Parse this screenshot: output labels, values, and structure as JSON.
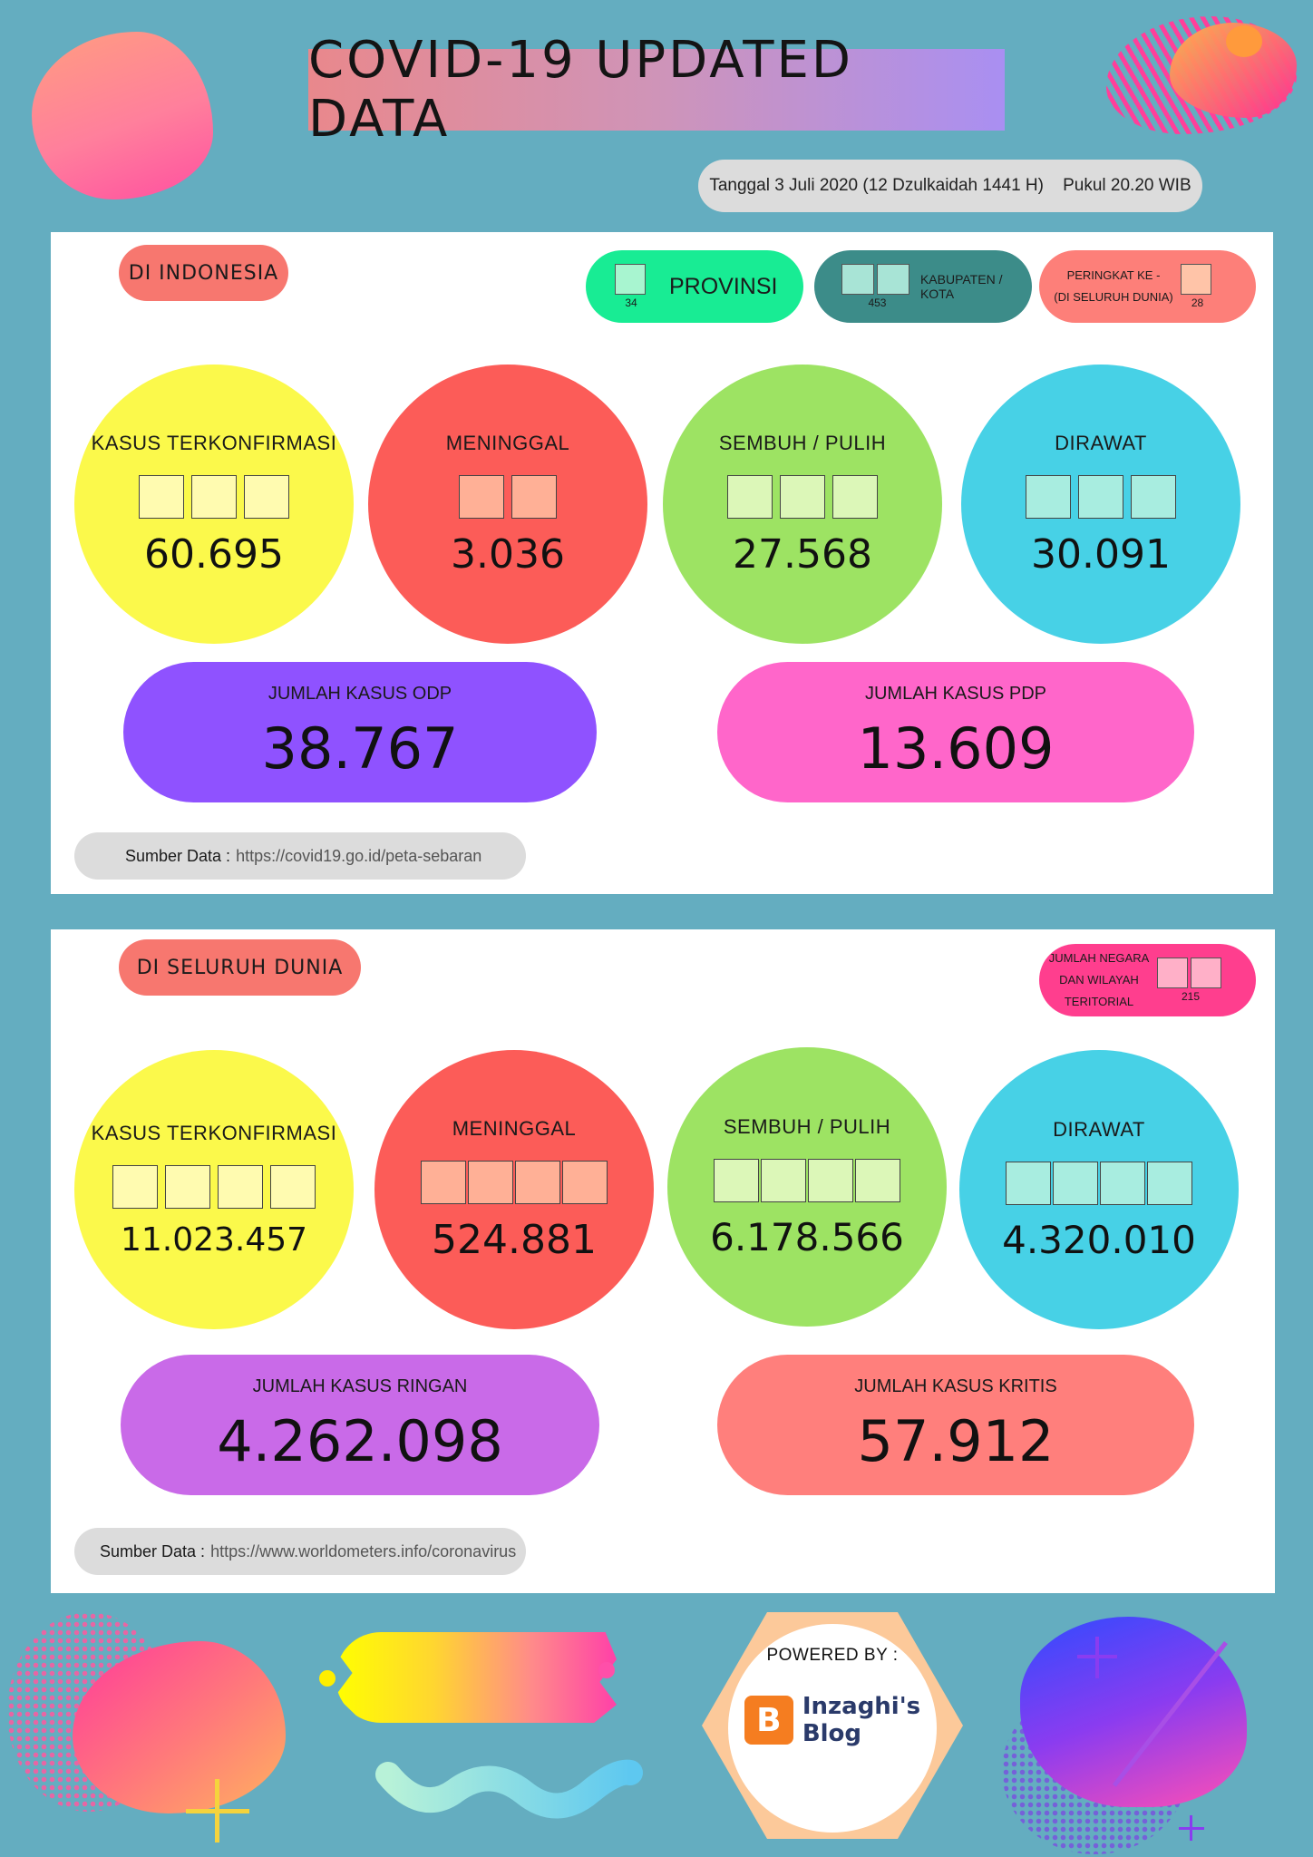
{
  "header": {
    "title": "COVID-19 UPDATED DATA",
    "date_text": "Tanggal 3 Juli 2020 (12 Dzulkaidah 1441 H)    Pukul 20.20 WIB"
  },
  "indonesia": {
    "section_label": "DI INDONESIA",
    "provinsi": {
      "label": "PROVINSI",
      "count": "34"
    },
    "kabupaten": {
      "label": "KABUPATEN / KOTA",
      "count": "453"
    },
    "peringkat": {
      "label_line1": "PERINGKAT KE -",
      "label_line2": "(DI SELURUH DUNIA)",
      "count": "28"
    },
    "stats": [
      {
        "label": "KASUS TERKONFIRMASI",
        "value": "60.695",
        "color": "#fbf94b"
      },
      {
        "label": "MENINGGAL",
        "value": "3.036",
        "color": "#fc5c58"
      },
      {
        "label": "SEMBUH / PULIH",
        "value": "27.568",
        "color": "#9de363"
      },
      {
        "label": "DIRAWAT",
        "value": "30.091",
        "color": "#47d1e6"
      }
    ],
    "odp": {
      "label": "JUMLAH KASUS ODP",
      "value": "38.767",
      "color": "#8f52ff"
    },
    "pdp": {
      "label": "JUMLAH KASUS PDP",
      "value": "13.609",
      "color": "#ff66ca"
    },
    "source": {
      "label": "Sumber Data :",
      "url": "https://covid19.go.id/peta-sebaran"
    }
  },
  "world": {
    "section_label": "DI SELURUH DUNIA",
    "negara": {
      "line1": "JUMLAH NEGARA",
      "line2": "DAN WILAYAH",
      "line3": "TERITORIAL",
      "count": "215"
    },
    "stats": [
      {
        "label": "KASUS TERKONFIRMASI",
        "value": "11.023.457",
        "color": "#fbf94b"
      },
      {
        "label": "MENINGGAL",
        "value": "524.881",
        "color": "#fc5c58"
      },
      {
        "label": "SEMBUH / PULIH",
        "value": "6.178.566",
        "color": "#9de363"
      },
      {
        "label": "DIRAWAT",
        "value": "4.320.010",
        "color": "#47d1e6"
      }
    ],
    "ringan": {
      "label": "JUMLAH KASUS RINGAN",
      "value": "4.262.098",
      "color": "#c96ae8"
    },
    "kritis": {
      "label": "JUMLAH KASUS KRITIS",
      "value": "57.912",
      "color": "#ff7f7c"
    },
    "source": {
      "label": "Sumber Data :",
      "url": "https://www.worldometers.info/coronavirus"
    }
  },
  "footer": {
    "powered_by": "POWERED BY :",
    "logo_line1": "Inzaghi's",
    "logo_line2": "Blog",
    "logo_icon": "blogger-icon"
  }
}
